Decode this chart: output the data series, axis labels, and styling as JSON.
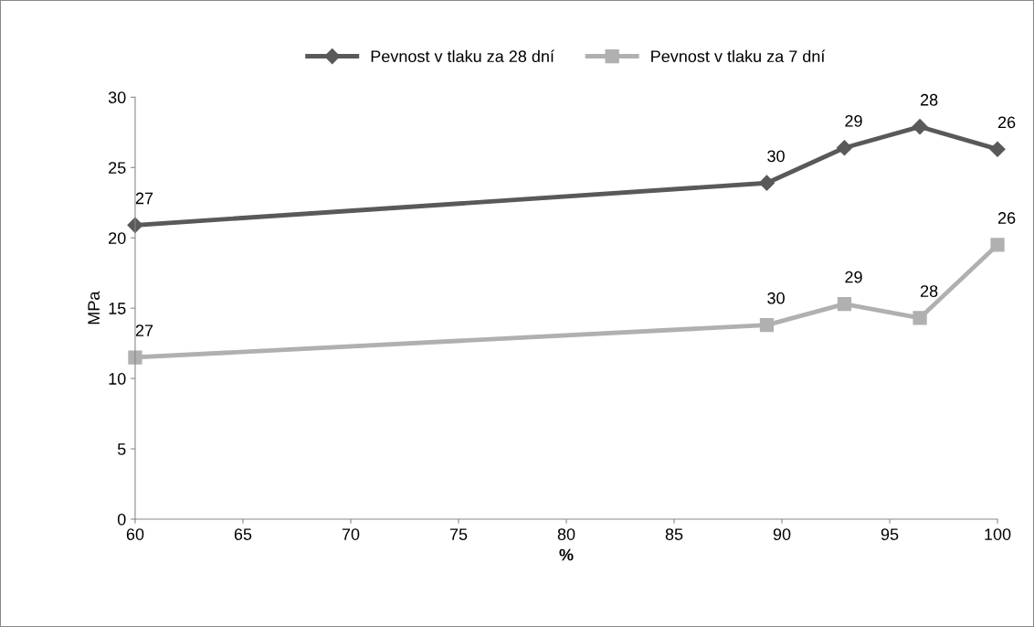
{
  "chart_data": {
    "type": "line",
    "xlabel": "%",
    "ylabel": "MPa",
    "x": [
      60,
      89.3,
      92.9,
      96.4,
      100
    ],
    "series": [
      {
        "name": "Pevnost v tlaku za 28 dní",
        "color": "#595959",
        "marker": "diamond",
        "values": [
          20.9,
          23.9,
          26.4,
          27.9,
          26.3
        ]
      },
      {
        "name": "Pevnost v tlaku za 7 dní",
        "color": "#b0b0b0",
        "marker": "square",
        "values": [
          11.5,
          13.8,
          15.3,
          14.3,
          19.5
        ]
      }
    ],
    "annotations": [
      {
        "text": "27",
        "x": 60,
        "y": 20.9
      },
      {
        "text": "30",
        "x": 89.3,
        "y": 23.9
      },
      {
        "text": "29",
        "x": 92.9,
        "y": 26.4
      },
      {
        "text": "28",
        "x": 96.4,
        "y": 27.9
      },
      {
        "text": "26",
        "x": 100,
        "y": 26.3
      },
      {
        "text": "27",
        "x": 60,
        "y": 11.5
      },
      {
        "text": "30",
        "x": 89.3,
        "y": 13.8
      },
      {
        "text": "29",
        "x": 92.9,
        "y": 15.3
      },
      {
        "text": "28",
        "x": 96.4,
        "y": 14.3
      },
      {
        "text": "26",
        "x": 100,
        "y": 19.5
      }
    ],
    "xlim": [
      60,
      100
    ],
    "xticks": [
      60,
      65,
      70,
      75,
      80,
      85,
      90,
      95,
      100
    ],
    "ylim": [
      0,
      30
    ],
    "yticks": [
      0,
      5,
      10,
      15,
      20,
      25,
      30
    ],
    "grid": false,
    "legend": "top",
    "line_style": "solid"
  }
}
